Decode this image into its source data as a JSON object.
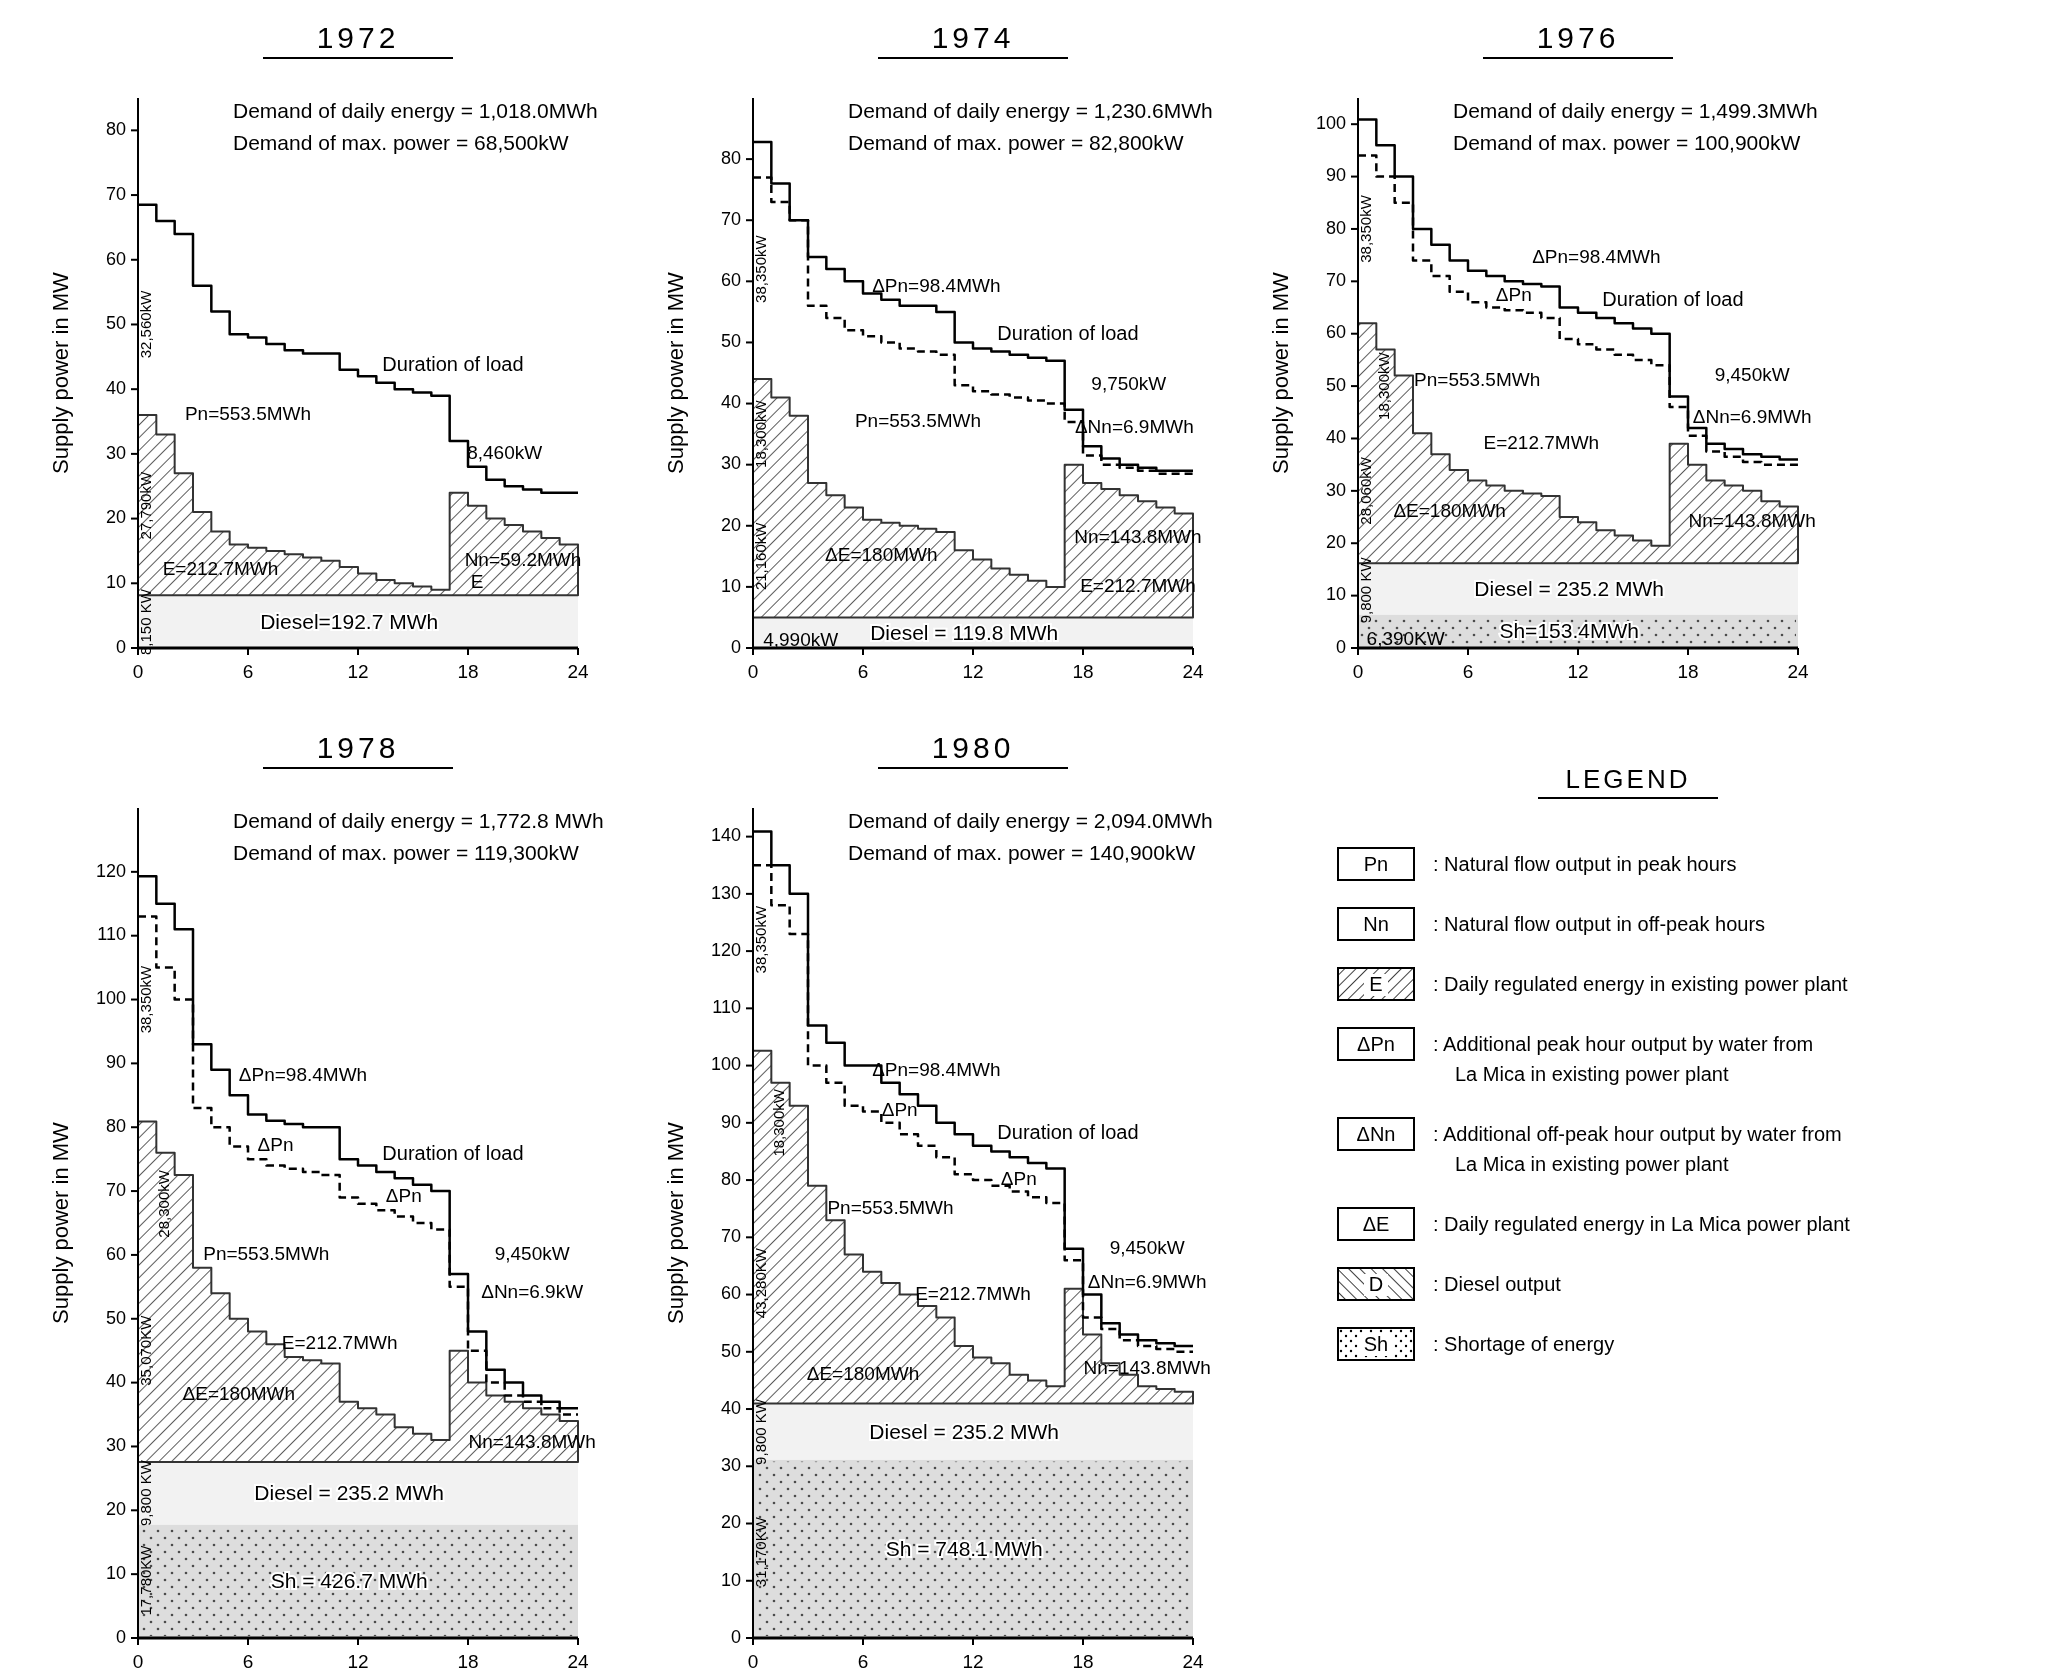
{
  "chart_data": [
    {
      "type": "step",
      "title": "1972",
      "subtitle": "Demand of daily energy = 1,018.0MWh\nDemand of max. power = 68,500kW",
      "ylabel": "Supply power in MW",
      "xlim": [
        0,
        24
      ],
      "xticks": [
        0,
        6,
        12,
        18,
        24
      ],
      "ylim": [
        0,
        85
      ],
      "yticks": [
        0,
        10,
        20,
        30,
        40,
        50,
        60,
        70,
        80
      ],
      "x": [
        0,
        1,
        2,
        3,
        4,
        5,
        6,
        7,
        8,
        9,
        10,
        11,
        12,
        13,
        14,
        15,
        16,
        17,
        18,
        19,
        20,
        21,
        22,
        23,
        24
      ],
      "series": [
        {
          "type": "area",
          "color": "#333333",
          "values": [
            36,
            33,
            27,
            21,
            18,
            16,
            15.5,
            15,
            14.5,
            14,
            13.5,
            12.5,
            11.5,
            10.5,
            10,
            9.5,
            9,
            24,
            22,
            20,
            19,
            18,
            17,
            16,
            16
          ]
        },
        {
          "name": "Duration of load",
          "color": "#000000",
          "values": [
            68.5,
            66,
            64,
            56,
            52,
            48.5,
            48,
            47,
            46,
            45.5,
            45.5,
            43,
            42,
            41,
            40,
            39.5,
            39,
            32,
            28,
            26,
            25,
            24.5,
            24,
            24,
            24
          ]
        }
      ],
      "bands": [
        {
          "axis": "y",
          "from": 0,
          "to": 8.15,
          "label": "Diesel=192.7 MWh",
          "color": "#f2f2f2"
        }
      ],
      "annotations": [
        "32,560kW",
        "27,790kW",
        "8,150 KW",
        "Pn=553.5MWh",
        "E=212.7MWh",
        "8,460kW",
        "Nn=59.2MWh",
        "E"
      ]
    },
    {
      "type": "step",
      "title": "1974",
      "subtitle": "Demand of daily energy = 1,230.6MWh\nDemand of max. power = 82,800kW",
      "ylabel": "Supply power in MW",
      "xlim": [
        0,
        24
      ],
      "xticks": [
        0,
        6,
        12,
        18,
        24
      ],
      "ylim": [
        0,
        90
      ],
      "yticks": [
        0,
        10,
        20,
        30,
        40,
        50,
        60,
        70,
        80
      ],
      "x": [
        0,
        1,
        2,
        3,
        4,
        5,
        6,
        7,
        8,
        9,
        10,
        11,
        12,
        13,
        14,
        15,
        16,
        17,
        18,
        19,
        20,
        21,
        22,
        23,
        24
      ],
      "series": [
        {
          "type": "area",
          "color": "#333333",
          "values": [
            44,
            41,
            38,
            27,
            25,
            23,
            21,
            20.5,
            20,
            19.5,
            19,
            16,
            14.5,
            13,
            12,
            11,
            10,
            30,
            27,
            26,
            25,
            24,
            23,
            22,
            22
          ]
        },
        {
          "color": "#000000",
          "line_style": "dashed",
          "values": [
            77,
            73,
            70,
            56,
            54,
            52,
            51,
            50,
            49,
            48.5,
            48,
            43,
            42,
            41.5,
            41,
            40.5,
            40,
            37,
            31.5,
            30,
            29.5,
            29,
            28.5,
            28.5,
            28.5
          ]
        },
        {
          "name": "Duration of load",
          "color": "#000000",
          "values": [
            82.8,
            76,
            70,
            64,
            62,
            60,
            58,
            57,
            56,
            56,
            55,
            50,
            49,
            48.5,
            48,
            47.5,
            47,
            39,
            33,
            31,
            30,
            29.5,
            29,
            29,
            29
          ]
        }
      ],
      "bands": [
        {
          "axis": "y",
          "from": 0,
          "to": 4.99,
          "label": "Diesel = 119.8 MWh",
          "color": "#f2f2f2"
        }
      ],
      "annotations": [
        "38,350kW",
        "18,300kW",
        "21,160kW",
        "4,990kW",
        "ΔPn=98.4MWh",
        "Pn=553.5MWh",
        "ΔE=180MWh",
        "9,750kW",
        "ΔNn=6.9MWh",
        "Nn=143.8MWh",
        "E=212.7MWh"
      ]
    },
    {
      "type": "step",
      "title": "1976",
      "subtitle": "Demand of daily energy = 1,499.3MWh\nDemand of max. power = 100,900kW",
      "ylabel": "Supply power in MW",
      "xlim": [
        0,
        24
      ],
      "xticks": [
        0,
        6,
        12,
        18,
        24
      ],
      "ylim": [
        0,
        105
      ],
      "yticks": [
        0,
        10,
        20,
        30,
        40,
        50,
        60,
        70,
        80,
        90,
        100
      ],
      "x": [
        0,
        1,
        2,
        3,
        4,
        5,
        6,
        7,
        8,
        9,
        10,
        11,
        12,
        13,
        14,
        15,
        16,
        17,
        18,
        19,
        20,
        21,
        22,
        23,
        24
      ],
      "series": [
        {
          "type": "area",
          "color": "#333333",
          "values": [
            62,
            57,
            52,
            41,
            37,
            34,
            32,
            31,
            30,
            29.5,
            29,
            25,
            24,
            22.5,
            21.5,
            20.5,
            19.5,
            39,
            35,
            32,
            31,
            30,
            28,
            27,
            27
          ]
        },
        {
          "color": "#000000",
          "line_style": "dashed",
          "values": [
            94,
            90,
            85,
            74,
            71,
            68,
            66,
            65,
            64.5,
            64,
            63,
            59,
            58,
            57,
            56,
            55,
            54,
            46,
            40.5,
            37.5,
            36.5,
            35.5,
            35,
            35,
            35
          ]
        },
        {
          "name": "Duration of load",
          "color": "#000000",
          "values": [
            100.9,
            96,
            90,
            80,
            77,
            74,
            72,
            71,
            70,
            69.5,
            69,
            65,
            64,
            63,
            62,
            61,
            60,
            48,
            42,
            39,
            38,
            37,
            36.5,
            36,
            36
          ]
        }
      ],
      "bands": [
        {
          "axis": "y",
          "from": 0,
          "to": 6.39,
          "label": "Sh=153.4MWh",
          "color": "#dddddd"
        },
        {
          "axis": "y",
          "from": 6.39,
          "to": 16.19,
          "label": "Diesel = 235.2 MWh",
          "color": "#f2f2f2"
        }
      ],
      "annotations": [
        "38,350kW",
        "18,300kW",
        "28,060kW",
        "9,800 KW",
        "6,390KW",
        "ΔPn=98.4MWh",
        "ΔPn",
        "Pn=553.5MWh",
        "E=212.7MWh",
        "ΔE=180MWh",
        "9,450kW",
        "ΔNn=6.9MWh",
        "Nn=143.8MWh"
      ]
    },
    {
      "type": "step",
      "title": "1978",
      "subtitle": "Demand of daily energy = 1,772.8 MWh\nDemand of max. power = 119,300kW",
      "ylabel": "Supply power in MW",
      "xlim": [
        0,
        24
      ],
      "xticks": [
        0,
        6,
        12,
        18,
        24
      ],
      "ylim": [
        0,
        130
      ],
      "yticks": [
        0,
        10,
        20,
        30,
        40,
        50,
        60,
        70,
        80,
        90,
        100,
        110,
        120
      ],
      "x": [
        0,
        1,
        2,
        3,
        4,
        5,
        6,
        7,
        8,
        9,
        10,
        11,
        12,
        13,
        14,
        15,
        16,
        17,
        18,
        19,
        20,
        21,
        22,
        23,
        24
      ],
      "series": [
        {
          "type": "area",
          "color": "#333333",
          "values": [
            80.9,
            76,
            72.5,
            58,
            54,
            50,
            48,
            46,
            44,
            43.5,
            43,
            37,
            36,
            35,
            33,
            32,
            31,
            45,
            40,
            38,
            37,
            36,
            35,
            34,
            34
          ]
        },
        {
          "color": "#000000",
          "line_style": "dashed",
          "values": [
            113,
            105,
            100,
            83,
            80,
            77,
            75,
            74,
            73.5,
            73,
            72.5,
            69,
            68,
            67,
            66,
            65,
            64,
            55,
            45,
            40,
            38,
            37,
            36,
            35,
            35
          ]
        },
        {
          "name": "Duration of load",
          "color": "#000000",
          "values": [
            119.3,
            115,
            111,
            93,
            89,
            85,
            82,
            81,
            80.5,
            80,
            80,
            75,
            74,
            73,
            72,
            71,
            70,
            57,
            48,
            42,
            40,
            38,
            37,
            36,
            36
          ]
        }
      ],
      "bands": [
        {
          "axis": "y",
          "from": 0,
          "to": 17.78,
          "label": "Sh = 426.7 MWh",
          "color": "#dddddd"
        },
        {
          "axis": "y",
          "from": 17.78,
          "to": 27.58,
          "label": "Diesel = 235.2 MWh",
          "color": "#f2f2f2"
        }
      ],
      "annotations": [
        "38,350kW",
        "28,300kW",
        "35,070KW",
        "9,800 KW",
        "17,780KW",
        "ΔPn=98.4MWh",
        "ΔPn",
        "ΔPn",
        "Pn=553.5MWh",
        "E=212.7MWh",
        "ΔE=180MWh",
        "9,450kW",
        "ΔNn=6.9kW",
        "Nn=143.8MWh"
      ]
    },
    {
      "type": "step",
      "title": "1980",
      "subtitle": "Demand of daily energy = 2,094.0MWh\nDemand of max. power = 140,900kW",
      "ylabel": "Supply power in MW",
      "xlim": [
        0,
        24
      ],
      "xticks": [
        0,
        6,
        12,
        18,
        24
      ],
      "ylim": [
        0,
        145
      ],
      "yticks": [
        0,
        10,
        20,
        30,
        40,
        50,
        60,
        70,
        80,
        90,
        100,
        110,
        120,
        130,
        140
      ],
      "x": [
        0,
        1,
        2,
        3,
        4,
        5,
        6,
        7,
        8,
        9,
        10,
        11,
        12,
        13,
        14,
        15,
        16,
        17,
        18,
        19,
        20,
        21,
        22,
        23,
        24
      ],
      "series": [
        {
          "type": "area",
          "color": "#333333",
          "values": [
            102.6,
            97,
            93,
            79,
            73,
            67,
            64,
            62,
            60,
            58,
            56,
            51,
            49,
            48,
            46,
            45,
            44,
            61,
            53,
            48,
            46,
            44,
            43.5,
            43,
            43
          ]
        },
        {
          "color": "#000000",
          "line_style": "dashed",
          "values": [
            135,
            128,
            123,
            100,
            97,
            93,
            92,
            90,
            88,
            86,
            84,
            81,
            80,
            79,
            78,
            77,
            76,
            66,
            56,
            54,
            52,
            51,
            50.5,
            50,
            50
          ]
        },
        {
          "name": "Duration of load",
          "color": "#000000",
          "values": [
            140.9,
            135,
            130,
            107,
            104,
            100,
            100,
            97,
            95,
            93,
            90,
            88,
            86,
            85,
            84,
            83,
            82,
            68,
            60,
            55,
            53,
            52,
            51.5,
            51,
            51
          ]
        }
      ],
      "bands": [
        {
          "axis": "y",
          "from": 0,
          "to": 31.17,
          "label": "Sh = 748.1 MWh",
          "color": "#dddddd"
        },
        {
          "axis": "y",
          "from": 31.17,
          "to": 40.97,
          "label": "Diesel = 235.2 MWh",
          "color": "#f2f2f2"
        }
      ],
      "annotations": [
        "38,350kW",
        "18,300kW",
        "43,280KW",
        "9,800 KW",
        "31,170KW",
        "ΔPn=98.4MWh",
        "ΔPn",
        "ΔPn",
        "Pn=553.5MWh",
        "E=212.7MWh",
        "ΔE=180MWh",
        "9,450kW",
        "ΔNn=6.9MWh",
        "Nn=143.8MWh"
      ]
    },
    {
      "type": "other",
      "title": "LEGEND",
      "annotations": [
        "Pn",
        ": Natural flow output in peak hours",
        "Nn",
        ": Natural flow output in off-peak hours",
        "E",
        ": Daily regulated energy in existing power plant",
        "ΔPn",
        ": Additional peak hour output by water from\nLa Mica in existing power plant",
        "ΔNn",
        ": Additional off-peak hour output by water from\nLa Mica in existing power plant",
        "ΔE",
        ": Daily regulated energy in La Mica power plant",
        "D",
        ": Diesel output",
        "Sh",
        ": Shortage of energy"
      ]
    }
  ]
}
